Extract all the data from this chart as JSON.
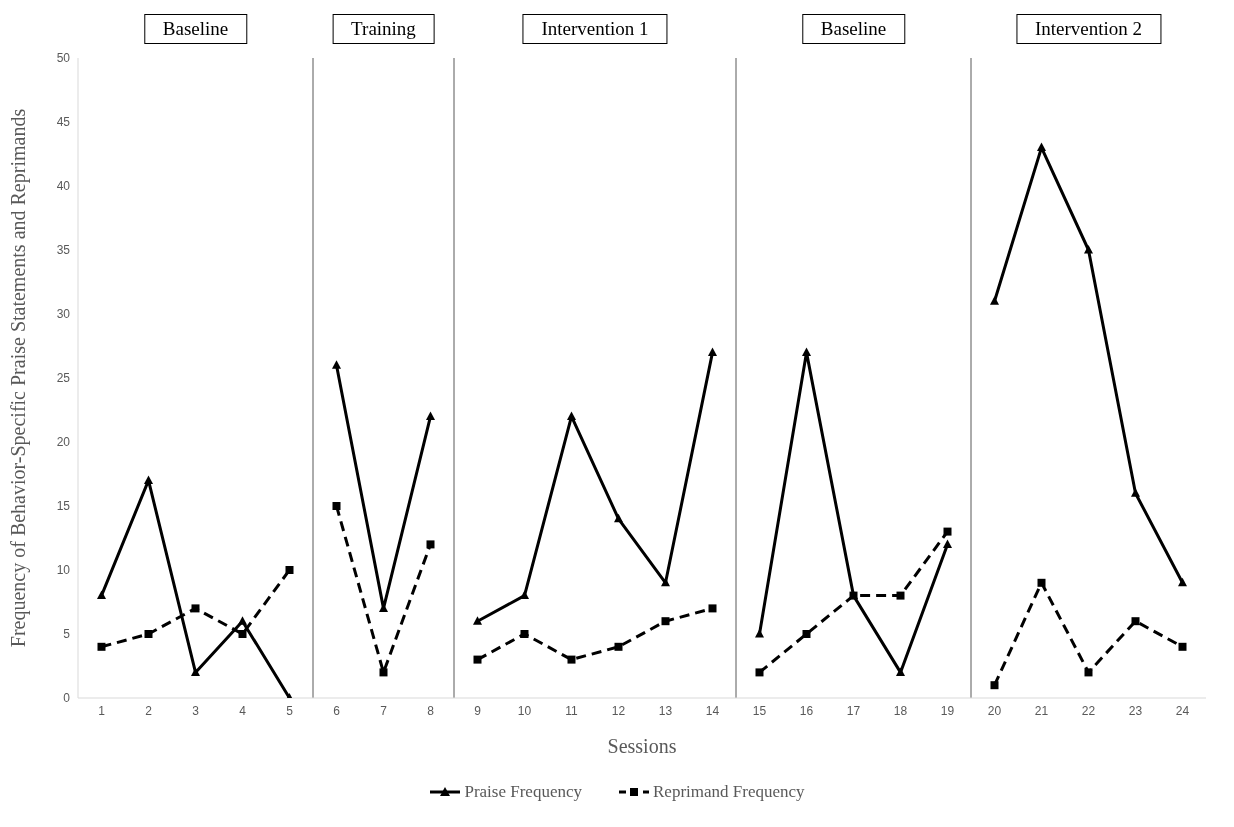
{
  "chart_data": {
    "type": "line",
    "xlabel": "Sessions",
    "ylabel": "Frequency of Behavior-Specific Praise Statements and Reprimands",
    "x": [
      1,
      2,
      3,
      4,
      5,
      6,
      7,
      8,
      9,
      10,
      11,
      12,
      13,
      14,
      15,
      16,
      17,
      18,
      19,
      20,
      21,
      22,
      23,
      24
    ],
    "xlim": [
      0.5,
      24.5
    ],
    "xticks": [
      1,
      2,
      3,
      4,
      5,
      6,
      7,
      8,
      9,
      10,
      11,
      12,
      13,
      14,
      15,
      16,
      17,
      18,
      19,
      20,
      21,
      22,
      23,
      24
    ],
    "ylim": [
      0,
      50
    ],
    "yticks": [
      0,
      5,
      10,
      15,
      20,
      25,
      30,
      35,
      40,
      45,
      50
    ],
    "series": [
      {
        "name": "Praise Frequency",
        "color": "#000000",
        "marker": "triangle",
        "line_style": "solid",
        "values": [
          8,
          17,
          2,
          6,
          0,
          26,
          7,
          22,
          6,
          8,
          22,
          14,
          9,
          27,
          5,
          27,
          8,
          2,
          12,
          31,
          43,
          35,
          16,
          9
        ]
      },
      {
        "name": "Reprimand Frequency",
        "color": "#000000",
        "marker": "square",
        "line_style": "dashed",
        "values": [
          4,
          5,
          7,
          5,
          10,
          15,
          2,
          12,
          3,
          5,
          3,
          4,
          6,
          7,
          2,
          5,
          8,
          8,
          13,
          1,
          9,
          2,
          6,
          4
        ]
      }
    ],
    "ref_lines": [
      {
        "axis": "x",
        "value": 5.5,
        "color": "#595959"
      },
      {
        "axis": "x",
        "value": 8.5,
        "color": "#595959"
      },
      {
        "axis": "x",
        "value": 14.5,
        "color": "#595959"
      },
      {
        "axis": "x",
        "value": 19.5,
        "color": "#595959"
      }
    ],
    "annotations": [
      "Baseline",
      "Training",
      "Intervention 1",
      "Baseline",
      "Intervention 2"
    ],
    "grid": false,
    "legend": "bottom"
  }
}
